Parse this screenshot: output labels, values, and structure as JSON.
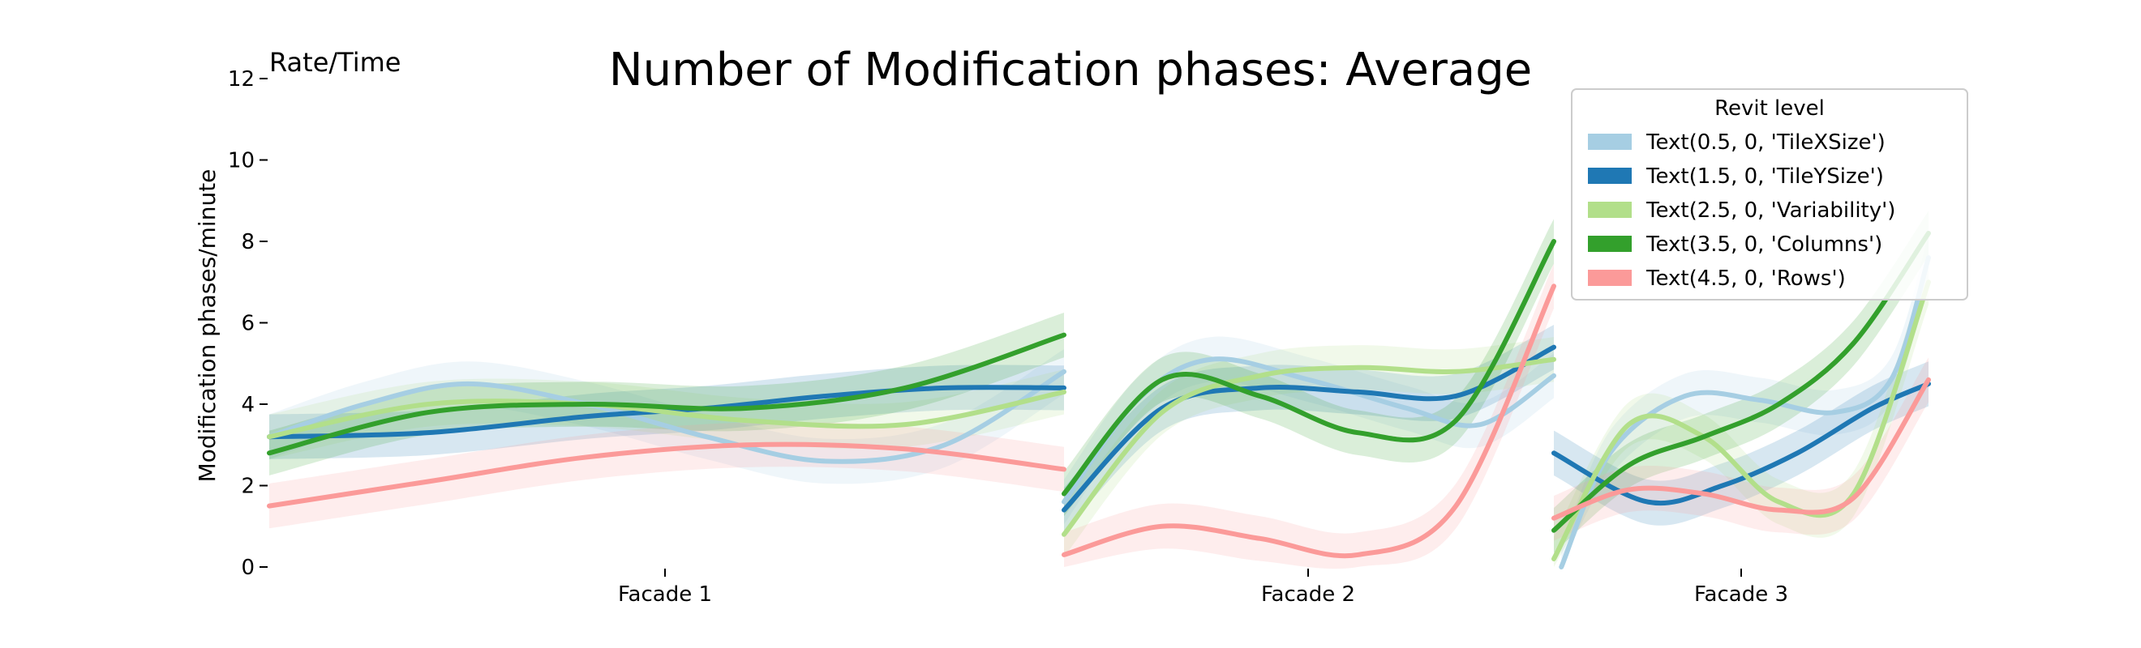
{
  "chart_data": {
    "type": "line",
    "title": "Number of Modification phases: Average",
    "corner_label": "Rate/Time",
    "ylabel": "Modification phases/minute",
    "xlabel": "",
    "ylim": [
      0,
      12
    ],
    "yticks": [
      "0",
      "2",
      "4",
      "6",
      "8",
      "10",
      "12"
    ],
    "grid": false,
    "legend": {
      "title": "Revit level",
      "placement": "top-right"
    },
    "panels": [
      {
        "label": "Facade 1",
        "x": [
          0,
          0.5,
          1
        ]
      },
      {
        "label": "Facade 2",
        "x": [
          0,
          0.5,
          1
        ]
      },
      {
        "label": "Facade 3",
        "x": [
          0,
          0.5,
          1
        ]
      }
    ],
    "series": [
      {
        "name": "Text(0.5, 0, 'TileXSize')",
        "color": "#a6cee3",
        "facade_values": [
          [
            [
              0,
              3.2
            ],
            [
              0.12,
              4.0
            ],
            [
              0.25,
              4.5
            ],
            [
              0.4,
              4.0
            ],
            [
              0.55,
              3.2
            ],
            [
              0.7,
              2.6
            ],
            [
              0.85,
              3.0
            ],
            [
              1.0,
              4.8
            ]
          ],
          [
            [
              0,
              1.6
            ],
            [
              0.15,
              4.1
            ],
            [
              0.3,
              5.1
            ],
            [
              0.5,
              4.6
            ],
            [
              0.7,
              3.9
            ],
            [
              0.85,
              3.5
            ],
            [
              1.0,
              4.7
            ]
          ],
          [
            [
              0.02,
              0.0
            ],
            [
              0.15,
              2.8
            ],
            [
              0.35,
              4.2
            ],
            [
              0.55,
              4.1
            ],
            [
              0.75,
              3.8
            ],
            [
              0.9,
              4.6
            ],
            [
              1.0,
              7.6
            ]
          ]
        ]
      },
      {
        "name": "Text(1.5, 0, 'TileYSize')",
        "color": "#1f78b4",
        "facade_values": [
          [
            [
              0,
              3.2
            ],
            [
              0.2,
              3.3
            ],
            [
              0.4,
              3.7
            ],
            [
              0.55,
              3.9
            ],
            [
              0.7,
              4.2
            ],
            [
              0.85,
              4.4
            ],
            [
              1.0,
              4.4
            ]
          ],
          [
            [
              0,
              1.4
            ],
            [
              0.2,
              3.9
            ],
            [
              0.4,
              4.4
            ],
            [
              0.6,
              4.3
            ],
            [
              0.8,
              4.2
            ],
            [
              1.0,
              5.4
            ]
          ],
          [
            [
              0,
              2.8
            ],
            [
              0.25,
              1.6
            ],
            [
              0.45,
              2.0
            ],
            [
              0.65,
              2.8
            ],
            [
              0.85,
              3.9
            ],
            [
              1.0,
              4.5
            ]
          ]
        ]
      },
      {
        "name": "Text(2.5, 0, 'Variability')",
        "color": "#b2df8a",
        "facade_values": [
          [
            [
              0,
              3.2
            ],
            [
              0.2,
              4.0
            ],
            [
              0.4,
              4.0
            ],
            [
              0.6,
              3.6
            ],
            [
              0.8,
              3.5
            ],
            [
              1.0,
              4.3
            ]
          ],
          [
            [
              0,
              0.8
            ],
            [
              0.2,
              3.8
            ],
            [
              0.4,
              4.7
            ],
            [
              0.6,
              4.9
            ],
            [
              0.8,
              4.8
            ],
            [
              1.0,
              5.1
            ]
          ],
          [
            [
              0,
              0.2
            ],
            [
              0.2,
              3.5
            ],
            [
              0.4,
              3.2
            ],
            [
              0.6,
              1.6
            ],
            [
              0.8,
              1.8
            ],
            [
              1.0,
              7.0
            ]
          ]
        ]
      },
      {
        "name": "Text(3.5, 0, 'Columns')",
        "color": "#33a02c",
        "facade_values": [
          [
            [
              0,
              2.8
            ],
            [
              0.2,
              3.8
            ],
            [
              0.4,
              4.0
            ],
            [
              0.6,
              3.9
            ],
            [
              0.8,
              4.4
            ],
            [
              1.0,
              5.7
            ]
          ],
          [
            [
              0,
              1.8
            ],
            [
              0.2,
              4.6
            ],
            [
              0.4,
              4.2
            ],
            [
              0.6,
              3.3
            ],
            [
              0.8,
              3.6
            ],
            [
              1.0,
              8.0
            ]
          ],
          [
            [
              0,
              0.9
            ],
            [
              0.2,
              2.5
            ],
            [
              0.4,
              3.2
            ],
            [
              0.6,
              4.0
            ],
            [
              0.8,
              5.5
            ],
            [
              1.0,
              8.2
            ]
          ]
        ]
      },
      {
        "name": "Text(4.5, 0, 'Rows')",
        "color": "#fb9a99",
        "facade_values": [
          [
            [
              0,
              1.5
            ],
            [
              0.2,
              2.1
            ],
            [
              0.4,
              2.7
            ],
            [
              0.6,
              3.0
            ],
            [
              0.8,
              2.9
            ],
            [
              1.0,
              2.4
            ]
          ],
          [
            [
              0,
              0.3
            ],
            [
              0.2,
              1.0
            ],
            [
              0.4,
              0.7
            ],
            [
              0.6,
              0.3
            ],
            [
              0.8,
              1.5
            ],
            [
              1.0,
              6.9
            ]
          ],
          [
            [
              0,
              1.2
            ],
            [
              0.2,
              1.9
            ],
            [
              0.4,
              1.8
            ],
            [
              0.6,
              1.4
            ],
            [
              0.8,
              1.7
            ],
            [
              1.0,
              4.6
            ]
          ]
        ]
      }
    ]
  }
}
